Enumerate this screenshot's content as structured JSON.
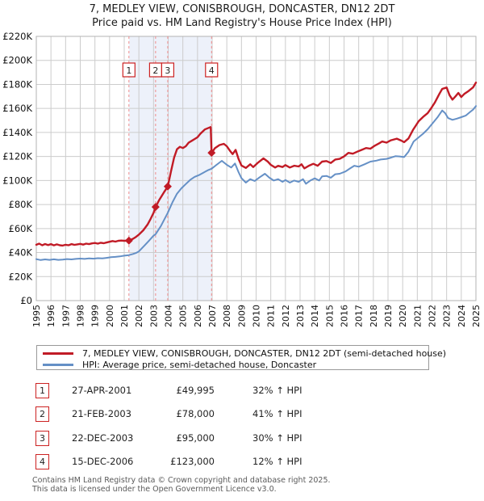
{
  "header": {
    "title": "7, MEDLEY VIEW, CONISBROUGH, DONCASTER, DN12 2DT",
    "subtitle": "Price paid vs. HM Land Registry's House Price Index (HPI)"
  },
  "legend": {
    "series1": "7, MEDLEY VIEW, CONISBROUGH, DONCASTER, DN12 2DT (semi-detached house)",
    "series2": "HPI: Average price, semi-detached house, Doncaster"
  },
  "colors": {
    "property": "#c11b26",
    "hpi": "#6590c6",
    "grid": "#cccccc",
    "border": "#b3b3b3",
    "band": "#edf1fa",
    "sale_line": "#f08c8c",
    "box_border": "#cc2222",
    "text": "#111111"
  },
  "transactions": [
    {
      "num": "1",
      "date": "27-APR-2001",
      "price": "£49,995",
      "hpi_diff": "32% ↑ HPI"
    },
    {
      "num": "2",
      "date": "21-FEB-2003",
      "price": "£78,000",
      "hpi_diff": "41% ↑ HPI"
    },
    {
      "num": "3",
      "date": "22-DEC-2003",
      "price": "£95,000",
      "hpi_diff": "30% ↑ HPI"
    },
    {
      "num": "4",
      "date": "15-DEC-2006",
      "price": "£123,000",
      "hpi_diff": "12% ↑ HPI"
    }
  ],
  "footer": {
    "line1": "Contains HM Land Registry data © Crown copyright and database right 2025.",
    "line2": "This data is licensed under the Open Government Licence v3.0."
  },
  "chart_data": {
    "type": "line",
    "title": "7, MEDLEY VIEW, CONISBROUGH, DONCASTER, DN12 2DT",
    "subtitle": "Price paid vs. HM Land Registry's House Price Index (HPI)",
    "grid": true,
    "legend_position": "bottom",
    "x_axis": {
      "min": 1995,
      "max": 2025,
      "years": [
        1995,
        1996,
        1997,
        1998,
        1999,
        2000,
        2001,
        2002,
        2003,
        2004,
        2005,
        2006,
        2007,
        2008,
        2009,
        2010,
        2011,
        2012,
        2013,
        2014,
        2015,
        2016,
        2017,
        2018,
        2019,
        2020,
        2021,
        2022,
        2023,
        2024,
        2025
      ]
    },
    "y_axis": {
      "min": 0,
      "max": 220000,
      "tick_interval": 20000,
      "ticks": [
        {
          "value": 0,
          "label": "£0"
        },
        {
          "value": 20000,
          "label": "£20K"
        },
        {
          "value": 40000,
          "label": "£40K"
        },
        {
          "value": 60000,
          "label": "£60K"
        },
        {
          "value": 80000,
          "label": "£80K"
        },
        {
          "value": 100000,
          "label": "£100K"
        },
        {
          "value": 120000,
          "label": "£120K"
        },
        {
          "value": 140000,
          "label": "£140K"
        },
        {
          "value": 160000,
          "label": "£160K"
        },
        {
          "value": 180000,
          "label": "£180K"
        },
        {
          "value": 200000,
          "label": "£200K"
        },
        {
          "value": 220000,
          "label": "£220K"
        }
      ]
    },
    "shaded_region": {
      "from_year": 2001.32,
      "to_year": 2006.96
    },
    "sales": [
      {
        "n": "1",
        "year": 2001.32,
        "date": "27-APR-2001",
        "price": 49995,
        "vs_hpi": "32% ↑ HPI"
      },
      {
        "n": "2",
        "year": 2003.14,
        "date": "21-FEB-2003",
        "price": 78000,
        "vs_hpi": "41% ↑ HPI"
      },
      {
        "n": "3",
        "year": 2003.97,
        "date": "22-DEC-2003",
        "price": 95000,
        "vs_hpi": "30% ↑ HPI"
      },
      {
        "n": "4",
        "year": 2006.96,
        "date": "15-DEC-2006",
        "price": 123000,
        "vs_hpi": "12% ↑ HPI"
      }
    ],
    "series": [
      {
        "name": "7, MEDLEY VIEW, CONISBROUGH, DONCASTER, DN12 2DT (semi-detached house)",
        "color": "#c11b26",
        "points": [
          [
            1995.0,
            46500
          ],
          [
            1995.2,
            47400
          ],
          [
            1995.4,
            46100
          ],
          [
            1995.6,
            47100
          ],
          [
            1995.8,
            46200
          ],
          [
            1996.0,
            47000
          ],
          [
            1996.2,
            46000
          ],
          [
            1996.4,
            46800
          ],
          [
            1996.6,
            46100
          ],
          [
            1996.8,
            45800
          ],
          [
            1997.0,
            46500
          ],
          [
            1997.2,
            46100
          ],
          [
            1997.4,
            47000
          ],
          [
            1997.6,
            46400
          ],
          [
            1997.8,
            46800
          ],
          [
            1998.0,
            47200
          ],
          [
            1998.2,
            46600
          ],
          [
            1998.4,
            47400
          ],
          [
            1998.6,
            47000
          ],
          [
            1998.8,
            47600
          ],
          [
            1999.0,
            48000
          ],
          [
            1999.2,
            47400
          ],
          [
            1999.4,
            48200
          ],
          [
            1999.6,
            47800
          ],
          [
            1999.8,
            48400
          ],
          [
            2000.0,
            49000
          ],
          [
            2000.2,
            49600
          ],
          [
            2000.4,
            49100
          ],
          [
            2000.6,
            49800
          ],
          [
            2000.8,
            50000
          ],
          [
            2001.0,
            49800
          ],
          [
            2001.32,
            49995
          ],
          [
            2001.6,
            51500
          ],
          [
            2001.8,
            53000
          ],
          [
            2002.0,
            55000
          ],
          [
            2002.3,
            58500
          ],
          [
            2002.6,
            63500
          ],
          [
            2002.8,
            68000
          ],
          [
            2003.0,
            73000
          ],
          [
            2003.14,
            78000
          ],
          [
            2003.4,
            84000
          ],
          [
            2003.7,
            90000
          ],
          [
            2003.97,
            95000
          ],
          [
            2004.2,
            108000
          ],
          [
            2004.4,
            119000
          ],
          [
            2004.6,
            126000
          ],
          [
            2004.8,
            128000
          ],
          [
            2005.0,
            127000
          ],
          [
            2005.2,
            128500
          ],
          [
            2005.4,
            131500
          ],
          [
            2005.6,
            133000
          ],
          [
            2005.8,
            134500
          ],
          [
            2006.0,
            136000
          ],
          [
            2006.2,
            139000
          ],
          [
            2006.5,
            142500
          ],
          [
            2006.7,
            143500
          ],
          [
            2006.9,
            144500
          ],
          [
            2006.96,
            123000
          ],
          [
            2007.2,
            127000
          ],
          [
            2007.5,
            129500
          ],
          [
            2007.8,
            130500
          ],
          [
            2008.0,
            128500
          ],
          [
            2008.2,
            125000
          ],
          [
            2008.4,
            122000
          ],
          [
            2008.6,
            125500
          ],
          [
            2008.8,
            118000
          ],
          [
            2009.0,
            112500
          ],
          [
            2009.3,
            110500
          ],
          [
            2009.6,
            113500
          ],
          [
            2009.8,
            111200
          ],
          [
            2010.1,
            114600
          ],
          [
            2010.5,
            118400
          ],
          [
            2010.8,
            115700
          ],
          [
            2011.0,
            113000
          ],
          [
            2011.3,
            110800
          ],
          [
            2011.5,
            112200
          ],
          [
            2011.8,
            111200
          ],
          [
            2012.0,
            112800
          ],
          [
            2012.3,
            110800
          ],
          [
            2012.6,
            112300
          ],
          [
            2012.9,
            111700
          ],
          [
            2013.1,
            113500
          ],
          [
            2013.3,
            110100
          ],
          [
            2013.6,
            112300
          ],
          [
            2013.9,
            113900
          ],
          [
            2014.2,
            112300
          ],
          [
            2014.5,
            115700
          ],
          [
            2014.8,
            116200
          ],
          [
            2015.1,
            114600
          ],
          [
            2015.4,
            117500
          ],
          [
            2015.7,
            118000
          ],
          [
            2016.0,
            120000
          ],
          [
            2016.3,
            123000
          ],
          [
            2016.6,
            122300
          ],
          [
            2016.9,
            124000
          ],
          [
            2017.2,
            125500
          ],
          [
            2017.5,
            127000
          ],
          [
            2017.8,
            126500
          ],
          [
            2018.1,
            129000
          ],
          [
            2018.4,
            131000
          ],
          [
            2018.6,
            132500
          ],
          [
            2018.9,
            131500
          ],
          [
            2019.2,
            133500
          ],
          [
            2019.6,
            134800
          ],
          [
            2019.9,
            133200
          ],
          [
            2020.1,
            131900
          ],
          [
            2020.4,
            135000
          ],
          [
            2020.7,
            142000
          ],
          [
            2021.1,
            149400
          ],
          [
            2021.4,
            153000
          ],
          [
            2021.7,
            156000
          ],
          [
            2021.9,
            159400
          ],
          [
            2022.2,
            165000
          ],
          [
            2022.5,
            172000
          ],
          [
            2022.7,
            176300
          ],
          [
            2023.0,
            177400
          ],
          [
            2023.2,
            171000
          ],
          [
            2023.4,
            167300
          ],
          [
            2023.6,
            170000
          ],
          [
            2023.8,
            172900
          ],
          [
            2024.0,
            169500
          ],
          [
            2024.2,
            172000
          ],
          [
            2024.5,
            174500
          ],
          [
            2024.8,
            177500
          ],
          [
            2025.0,
            181500
          ]
        ]
      },
      {
        "name": "HPI: Average price, semi-detached house, Doncaster",
        "color": "#6590c6",
        "points": [
          [
            1995.0,
            34500
          ],
          [
            1995.3,
            33800
          ],
          [
            1995.6,
            34300
          ],
          [
            1995.9,
            33900
          ],
          [
            1996.2,
            34400
          ],
          [
            1996.5,
            33900
          ],
          [
            1996.8,
            34200
          ],
          [
            1997.1,
            34600
          ],
          [
            1997.4,
            34300
          ],
          [
            1997.7,
            34700
          ],
          [
            1998.0,
            35000
          ],
          [
            1998.3,
            34700
          ],
          [
            1998.6,
            35100
          ],
          [
            1998.9,
            34900
          ],
          [
            1999.2,
            35300
          ],
          [
            1999.5,
            35100
          ],
          [
            1999.8,
            35600
          ],
          [
            2000.1,
            36100
          ],
          [
            2000.4,
            36400
          ],
          [
            2000.7,
            36800
          ],
          [
            2001.0,
            37400
          ],
          [
            2001.32,
            37900
          ],
          [
            2001.6,
            38800
          ],
          [
            2001.8,
            39600
          ],
          [
            2002.0,
            41000
          ],
          [
            2002.4,
            46000
          ],
          [
            2002.7,
            50000
          ],
          [
            2003.0,
            54000
          ],
          [
            2003.14,
            55300
          ],
          [
            2003.5,
            62000
          ],
          [
            2003.97,
            73100
          ],
          [
            2004.3,
            82000
          ],
          [
            2004.6,
            89000
          ],
          [
            2004.9,
            93500
          ],
          [
            2005.2,
            97000
          ],
          [
            2005.5,
            100500
          ],
          [
            2005.8,
            103000
          ],
          [
            2006.1,
            104500
          ],
          [
            2006.4,
            106500
          ],
          [
            2006.7,
            108500
          ],
          [
            2006.96,
            109800
          ],
          [
            2007.3,
            113000
          ],
          [
            2007.66,
            116400
          ],
          [
            2008.0,
            113000
          ],
          [
            2008.3,
            110800
          ],
          [
            2008.56,
            114200
          ],
          [
            2008.8,
            107000
          ],
          [
            2009.0,
            102000
          ],
          [
            2009.3,
            98200
          ],
          [
            2009.6,
            101100
          ],
          [
            2009.9,
            99600
          ],
          [
            2010.2,
            102300
          ],
          [
            2010.6,
            105600
          ],
          [
            2010.9,
            102300
          ],
          [
            2011.2,
            100000
          ],
          [
            2011.5,
            101100
          ],
          [
            2011.8,
            98900
          ],
          [
            2012.0,
            100400
          ],
          [
            2012.3,
            98200
          ],
          [
            2012.6,
            100000
          ],
          [
            2012.9,
            98900
          ],
          [
            2013.2,
            101100
          ],
          [
            2013.4,
            97300
          ],
          [
            2013.7,
            100000
          ],
          [
            2014.0,
            101800
          ],
          [
            2014.3,
            100000
          ],
          [
            2014.5,
            103400
          ],
          [
            2014.8,
            103800
          ],
          [
            2015.1,
            102300
          ],
          [
            2015.4,
            105200
          ],
          [
            2015.7,
            105600
          ],
          [
            2016.1,
            107500
          ],
          [
            2016.4,
            110000
          ],
          [
            2016.7,
            112300
          ],
          [
            2017.0,
            111500
          ],
          [
            2017.4,
            113500
          ],
          [
            2017.8,
            115700
          ],
          [
            2018.2,
            116500
          ],
          [
            2018.5,
            117500
          ],
          [
            2018.9,
            118000
          ],
          [
            2019.2,
            119000
          ],
          [
            2019.5,
            120200
          ],
          [
            2019.8,
            120000
          ],
          [
            2020.1,
            119500
          ],
          [
            2020.4,
            124000
          ],
          [
            2020.75,
            132500
          ],
          [
            2021.1,
            136000
          ],
          [
            2021.4,
            139000
          ],
          [
            2021.7,
            142600
          ],
          [
            2022.0,
            147000
          ],
          [
            2022.4,
            153000
          ],
          [
            2022.7,
            158300
          ],
          [
            2022.9,
            156000
          ],
          [
            2023.1,
            152000
          ],
          [
            2023.4,
            150500
          ],
          [
            2023.7,
            151500
          ],
          [
            2024.0,
            152700
          ],
          [
            2024.3,
            154000
          ],
          [
            2024.6,
            157000
          ],
          [
            2024.8,
            159000
          ],
          [
            2025.0,
            162000
          ]
        ]
      }
    ]
  }
}
